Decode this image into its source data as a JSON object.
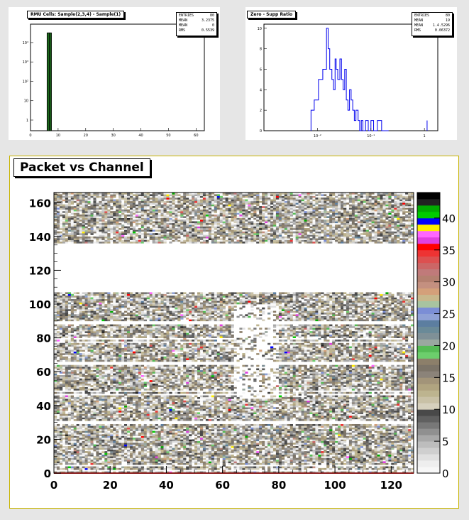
{
  "charts": [
    {
      "type": "bar",
      "title": "RMU Cells: Sample(2,3,4) - Sample(1)",
      "stats": [
        {
          "label": "ENTRIES",
          "value": "80"
        },
        {
          "label": "MEAN",
          "value": "3.2375"
        },
        {
          "label": "MEAN",
          "value": "0"
        },
        {
          "label": "RMS",
          "value": "0.5539"
        }
      ],
      "x_ticks": [
        "0",
        "10",
        "20",
        "30",
        "40",
        "50",
        "60"
      ],
      "y_ticks": [
        "1",
        "10",
        "10²",
        "10³",
        "10⁴"
      ],
      "bars": [
        {
          "x": 6.2,
          "y": 4.5
        },
        {
          "x": 6.6,
          "y": 4.5
        },
        {
          "x": 7.0,
          "y": 4.5
        },
        {
          "x": 7.4,
          "y": 4.5
        }
      ],
      "bar_fill": "#2a9a2a",
      "xlim": [
        0,
        63
      ],
      "ylim": [
        -0.55,
        4.95
      ]
    },
    {
      "type": "line",
      "title": "Zero - Supp Ratio",
      "stats": [
        {
          "label": "ENTRIES",
          "value": "80"
        },
        {
          "label": "MEAN",
          "value": "19"
        },
        {
          "label": "MEAN",
          "value": "1.4.5296"
        },
        {
          "label": "RMS",
          "value": "0.06372"
        }
      ],
      "x_ticks": [
        "10⁻²",
        "10⁻¹",
        "1"
      ],
      "y_ticks": [
        "0",
        "2",
        "4",
        "6",
        "8",
        "10"
      ],
      "series": [
        {
          "color": "#0000ee",
          "x": [
            -2.12,
            -2.06,
            -1.98,
            -1.9,
            -1.83,
            -1.8,
            -1.77,
            -1.73,
            -1.7,
            -1.67,
            -1.65,
            -1.62,
            -1.58,
            -1.55,
            -1.52,
            -1.49,
            -1.46,
            -1.43,
            -1.4,
            -1.37,
            -1.34,
            -1.31,
            -1.28,
            -1.24,
            -1.21,
            -1.18,
            -1.15,
            -1.1,
            -1.05,
            -1.0,
            -0.95,
            -0.88,
            -0.8,
            -0.7
          ],
          "y": [
            2,
            3,
            5,
            6,
            10,
            8,
            6,
            5,
            4,
            7,
            6,
            5,
            7,
            5,
            4,
            6,
            3,
            2,
            4,
            3,
            2,
            1,
            2,
            1,
            0,
            1,
            0,
            1,
            0,
            1,
            0,
            1,
            0,
            0
          ]
        }
      ],
      "xlim": [
        -3,
        0.25
      ],
      "ylim": [
        0,
        10.4
      ]
    },
    {
      "type": "heatmap",
      "title": "Packet vs Channel",
      "x_ticks": [
        "0",
        "20",
        "40",
        "60",
        "80",
        "100",
        "120"
      ],
      "x_values": [
        0,
        20,
        40,
        60,
        80,
        100,
        120
      ],
      "y_ticks": [
        "0",
        "20",
        "40",
        "60",
        "80",
        "100",
        "120",
        "140",
        "160"
      ],
      "y_values": [
        0,
        20,
        40,
        60,
        80,
        100,
        120,
        140,
        160
      ],
      "xlim": [
        0,
        128
      ],
      "ylim": [
        0,
        166
      ],
      "z_ticks": [
        "0",
        "5",
        "10",
        "15",
        "20",
        "25",
        "30",
        "35",
        "40"
      ],
      "z_values": [
        0,
        5,
        10,
        15,
        20,
        25,
        30,
        35,
        40
      ],
      "zlim": [
        0,
        44
      ],
      "empty_rows": [
        [
          107,
          136
        ],
        [
          64,
          66
        ],
        [
          29,
          31
        ],
        [
          88,
          90
        ]
      ],
      "sparse_region": {
        "x": [
          64,
          80
        ],
        "y": [
          44,
          100
        ]
      },
      "palette": [
        "#f7f7f7",
        "#eeeeee",
        "#e0e0e0",
        "#cfcfcf",
        "#bdbdbd",
        "#a8a8a8",
        "#909090",
        "#787878",
        "#606060",
        "#494949",
        "#d6d0bd",
        "#c9c1a6",
        "#bdb48f",
        "#b0a480",
        "#a29479",
        "#8b8379",
        "#7c7468",
        "#8c7f6a",
        "#6cce6c",
        "#55bb55",
        "#9aa8a0",
        "#7f9097",
        "#6a8a98",
        "#5c7ea0",
        "#8fa1d6",
        "#7b8ed6",
        "#a8c4a0",
        "#c8b88c",
        "#d4a07a",
        "#c49080",
        "#b48070",
        "#c07a7a",
        "#cc6666",
        "#dd5050",
        "#ee3333",
        "#ff0000",
        "#e040e0",
        "#ff66ff",
        "#ffee00",
        "#0000ff",
        "#00cc00",
        "#00aa00",
        "#222222",
        "#000000"
      ]
    }
  ]
}
